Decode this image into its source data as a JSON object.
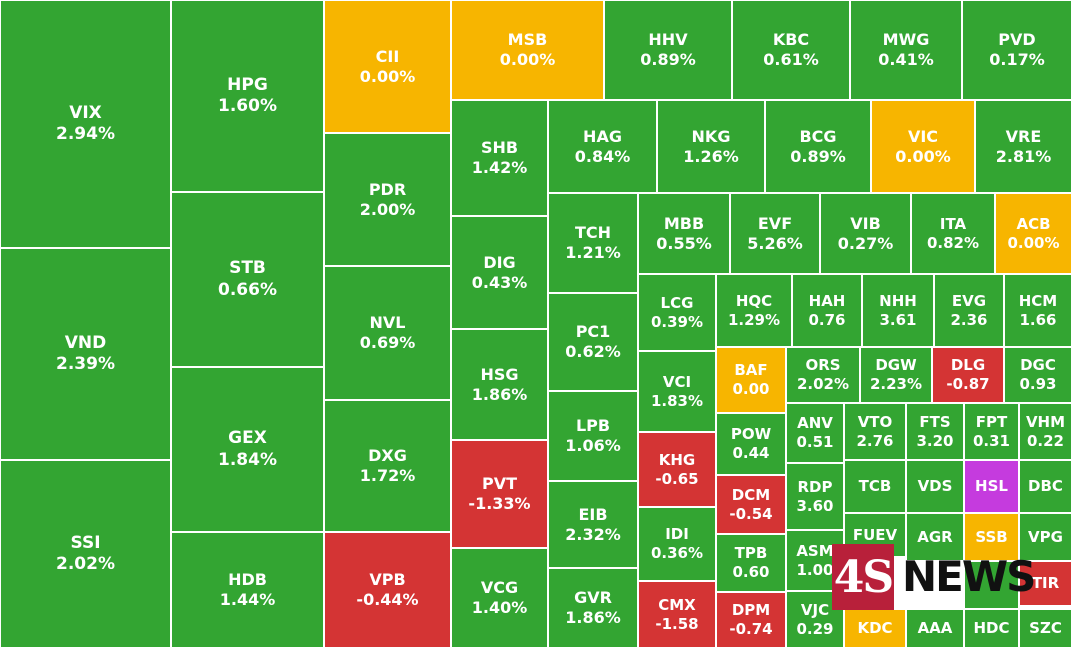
{
  "chart_data": {
    "type": "treemap",
    "colors": {
      "up": "#33a532",
      "flat": "#f7b500",
      "down": "#d43434",
      "ceiling": "#c53bde"
    },
    "tiles": [
      {
        "symbol": "VIX",
        "change": "2.94%",
        "status": "up"
      },
      {
        "symbol": "VND",
        "change": "2.39%",
        "status": "up"
      },
      {
        "symbol": "SSI",
        "change": "2.02%",
        "status": "up"
      },
      {
        "symbol": "HPG",
        "change": "1.60%",
        "status": "up"
      },
      {
        "symbol": "STB",
        "change": "0.66%",
        "status": "up"
      },
      {
        "symbol": "GEX",
        "change": "1.84%",
        "status": "up"
      },
      {
        "symbol": "HDB",
        "change": "1.44%",
        "status": "up"
      },
      {
        "symbol": "CII",
        "change": "0.00%",
        "status": "flat"
      },
      {
        "symbol": "PDR",
        "change": "2.00%",
        "status": "up"
      },
      {
        "symbol": "NVL",
        "change": "0.69%",
        "status": "up"
      },
      {
        "symbol": "DXG",
        "change": "1.72%",
        "status": "up"
      },
      {
        "symbol": "VPB",
        "change": "-0.44%",
        "status": "down"
      },
      {
        "symbol": "MSB",
        "change": "0.00%",
        "status": "flat"
      },
      {
        "symbol": "HHV",
        "change": "0.89%",
        "status": "up"
      },
      {
        "symbol": "KBC",
        "change": "0.61%",
        "status": "up"
      },
      {
        "symbol": "MWG",
        "change": "0.41%",
        "status": "up"
      },
      {
        "symbol": "PVD",
        "change": "0.17%",
        "status": "up"
      },
      {
        "symbol": "SHB",
        "change": "1.42%",
        "status": "up"
      },
      {
        "symbol": "DIG",
        "change": "0.43%",
        "status": "up"
      },
      {
        "symbol": "HSG",
        "change": "1.86%",
        "status": "up"
      },
      {
        "symbol": "PVT",
        "change": "-1.33%",
        "status": "down"
      },
      {
        "symbol": "VCG",
        "change": "1.40%",
        "status": "up"
      },
      {
        "symbol": "HAG",
        "change": "0.84%",
        "status": "up"
      },
      {
        "symbol": "NKG",
        "change": "1.26%",
        "status": "up"
      },
      {
        "symbol": "BCG",
        "change": "0.89%",
        "status": "up"
      },
      {
        "symbol": "VIC",
        "change": "0.00%",
        "status": "flat"
      },
      {
        "symbol": "VRE",
        "change": "2.81%",
        "status": "up"
      },
      {
        "symbol": "TCH",
        "change": "1.21%",
        "status": "up"
      },
      {
        "symbol": "PC1",
        "change": "0.62%",
        "status": "up"
      },
      {
        "symbol": "LPB",
        "change": "1.06%",
        "status": "up"
      },
      {
        "symbol": "EIB",
        "change": "2.32%",
        "status": "up"
      },
      {
        "symbol": "GVR",
        "change": "1.86%",
        "status": "up"
      },
      {
        "symbol": "MBB",
        "change": "0.55%",
        "status": "up"
      },
      {
        "symbol": "EVF",
        "change": "5.26%",
        "status": "up"
      },
      {
        "symbol": "VIB",
        "change": "0.27%",
        "status": "up"
      },
      {
        "symbol": "ITA",
        "change": "0.82%",
        "status": "up"
      },
      {
        "symbol": "ACB",
        "change": "0.00%",
        "status": "flat"
      },
      {
        "symbol": "LCG",
        "change": "0.39%",
        "status": "up"
      },
      {
        "symbol": "VCI",
        "change": "1.83%",
        "status": "up"
      },
      {
        "symbol": "KHG",
        "change": "-0.65",
        "status": "down"
      },
      {
        "symbol": "IDI",
        "change": "0.36%",
        "status": "up"
      },
      {
        "symbol": "CMX",
        "change": "-1.58",
        "status": "down"
      },
      {
        "symbol": "HQC",
        "change": "1.29%",
        "status": "up"
      },
      {
        "symbol": "HAH",
        "change": "0.76",
        "status": "up"
      },
      {
        "symbol": "NHH",
        "change": "3.61",
        "status": "up"
      },
      {
        "symbol": "EVG",
        "change": "2.36",
        "status": "up"
      },
      {
        "symbol": "HCM",
        "change": "1.66",
        "status": "up"
      },
      {
        "symbol": "BAF",
        "change": "0.00",
        "status": "flat"
      },
      {
        "symbol": "ORS",
        "change": "2.02%",
        "status": "up"
      },
      {
        "symbol": "DGW",
        "change": "2.23%",
        "status": "up"
      },
      {
        "symbol": "DLG",
        "change": "-0.87",
        "status": "down"
      },
      {
        "symbol": "DGC",
        "change": "0.93",
        "status": "up"
      },
      {
        "symbol": "POW",
        "change": "0.44",
        "status": "up"
      },
      {
        "symbol": "DCM",
        "change": "-0.54",
        "status": "down"
      },
      {
        "symbol": "TPB",
        "change": "0.60",
        "status": "up"
      },
      {
        "symbol": "DPM",
        "change": "-0.74",
        "status": "down"
      },
      {
        "symbol": "ANV",
        "change": "0.51",
        "status": "up"
      },
      {
        "symbol": "RDP",
        "change": "3.60",
        "status": "up"
      },
      {
        "symbol": "ASM",
        "change": "1.00",
        "status": "up"
      },
      {
        "symbol": "VJC",
        "change": "0.29",
        "status": "up"
      },
      {
        "symbol": "VTO",
        "change": "2.76",
        "status": "up"
      },
      {
        "symbol": "FTS",
        "change": "3.20",
        "status": "up"
      },
      {
        "symbol": "FPT",
        "change": "0.31",
        "status": "up"
      },
      {
        "symbol": "VHM",
        "change": "0.22",
        "status": "up"
      },
      {
        "symbol": "TCB",
        "change": "",
        "status": "up"
      },
      {
        "symbol": "VDS",
        "change": "",
        "status": "up"
      },
      {
        "symbol": "HSL",
        "change": "",
        "status": "ceiling"
      },
      {
        "symbol": "DBC",
        "change": "",
        "status": "up"
      },
      {
        "symbol": "FUEV",
        "change": "",
        "status": "up"
      },
      {
        "symbol": "AGR",
        "change": "",
        "status": "up"
      },
      {
        "symbol": "SSB",
        "change": "",
        "status": "flat"
      },
      {
        "symbol": "VPG",
        "change": "",
        "status": "up"
      },
      {
        "symbol": "KDC",
        "change": "",
        "status": "flat"
      },
      {
        "symbol": "AAA",
        "change": "",
        "status": "up"
      },
      {
        "symbol": "HDC",
        "change": "",
        "status": "up"
      },
      {
        "symbol": "SZC",
        "change": "",
        "status": "up"
      },
      {
        "symbol": "TIR",
        "change": "",
        "status": "down"
      },
      {
        "symbol": "",
        "change": "",
        "status": "up"
      }
    ]
  },
  "watermark": {
    "badge": "4S",
    "word": "NEWS"
  }
}
